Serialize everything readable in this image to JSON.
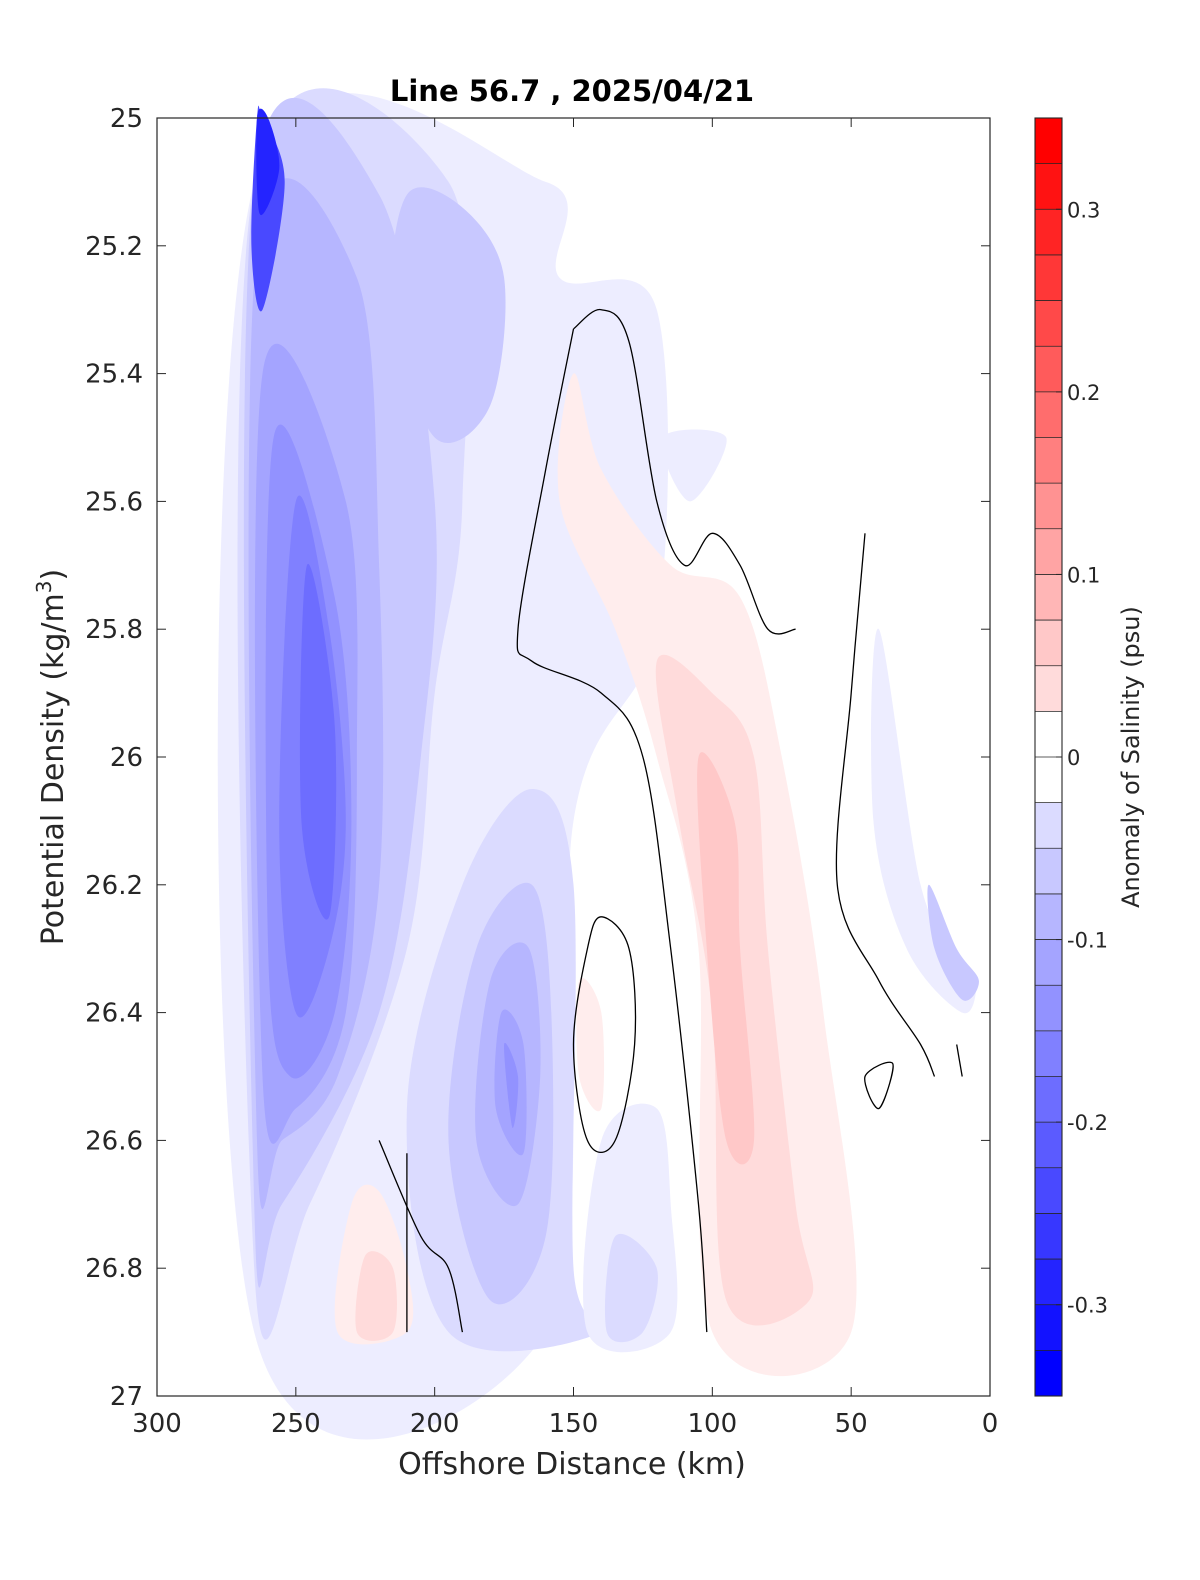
{
  "chart_data": {
    "type": "heatmap",
    "subtype": "filled-contour",
    "title": "Line 56.7 , 2025/04/21",
    "xlabel": "Offshore Distance (km)",
    "ylabel": "Potential Density (kg/m³)",
    "ylabel_parts": {
      "base": "Potential Density (kg/m",
      "sup": "3",
      "end": ")"
    },
    "colorbar_label": "Anomaly of Salinity (psu)",
    "xlim": [
      300,
      0
    ],
    "x_reversed": true,
    "ylim": [
      25,
      27
    ],
    "y_reversed": true,
    "x_ticks": [
      300,
      250,
      200,
      150,
      100,
      50,
      0
    ],
    "x_tick_labels": [
      "300",
      "250",
      "200",
      "150",
      "100",
      "50",
      "0"
    ],
    "y_ticks": [
      25,
      25.2,
      25.4,
      25.6,
      25.8,
      26,
      26.2,
      26.4,
      26.6,
      26.8,
      27
    ],
    "y_tick_labels": [
      "25",
      "25.2",
      "25.4",
      "25.6",
      "25.8",
      "26",
      "26.2",
      "26.4",
      "26.6",
      "26.8",
      "27"
    ],
    "colorbar_range": [
      -0.35,
      0.35
    ],
    "colorbar_step": 0.025,
    "colorbar_ticks": [
      -0.3,
      -0.2,
      -0.1,
      0,
      0.1,
      0.2,
      0.3
    ],
    "colorbar_tick_labels": [
      "-0.3",
      "-0.2",
      "-0.1",
      "0",
      "0.1",
      "0.2",
      "0.3"
    ],
    "colormap": {
      "negative": "#0000ff",
      "zero": "#ffffff",
      "positive": "#ff0000"
    },
    "zero_contour_color": "#000000",
    "grid": false,
    "regions": [
      {
        "sign": "neg",
        "level": 0.025,
        "points": [
          [
            265,
            25.1
          ],
          [
            160,
            25.1
          ],
          [
            155,
            25.25
          ],
          [
            120,
            25.3
          ],
          [
            120,
            25.8
          ],
          [
            150,
            26.1
          ],
          [
            160,
            26.9
          ],
          [
            265,
            26.9
          ]
        ]
      },
      {
        "sign": "neg",
        "level": 0.05,
        "points": [
          [
            265,
            25.1
          ],
          [
            195,
            25.1
          ],
          [
            190,
            25.6
          ],
          [
            200,
            25.9
          ],
          [
            210,
            26.3
          ],
          [
            245,
            26.7
          ],
          [
            265,
            26.8
          ]
        ]
      },
      {
        "sign": "neg",
        "level": 0.075,
        "points": [
          [
            265,
            25.1
          ],
          [
            220,
            25.12
          ],
          [
            200,
            25.6
          ],
          [
            205,
            26.0
          ],
          [
            220,
            26.4
          ],
          [
            255,
            26.7
          ],
          [
            265,
            26.7
          ]
        ]
      },
      {
        "sign": "neg",
        "level": 0.1,
        "points": [
          [
            264,
            25.2
          ],
          [
            228,
            25.25
          ],
          [
            220,
            25.7
          ],
          [
            220,
            26.2
          ],
          [
            235,
            26.5
          ],
          [
            255,
            26.6
          ],
          [
            264,
            26.6
          ]
        ]
      },
      {
        "sign": "neg",
        "level": 0.125,
        "points": [
          [
            262,
            25.4
          ],
          [
            232,
            25.6
          ],
          [
            228,
            26.0
          ],
          [
            232,
            26.4
          ],
          [
            250,
            26.55
          ],
          [
            262,
            26.5
          ]
        ]
      },
      {
        "sign": "neg",
        "level": 0.15,
        "points": [
          [
            258,
            25.5
          ],
          [
            236,
            25.75
          ],
          [
            230,
            26.1
          ],
          [
            236,
            26.4
          ],
          [
            252,
            26.5
          ],
          [
            260,
            26.3
          ]
        ]
      },
      {
        "sign": "neg",
        "level": 0.175,
        "points": [
          [
            250,
            25.6
          ],
          [
            238,
            25.8
          ],
          [
            232,
            26.1
          ],
          [
            238,
            26.3
          ],
          [
            250,
            26.4
          ],
          [
            256,
            26.1
          ]
        ]
      },
      {
        "sign": "neg",
        "level": 0.2,
        "points": [
          [
            246,
            25.7
          ],
          [
            236,
            25.95
          ],
          [
            238,
            26.25
          ],
          [
            248,
            26.1
          ]
        ]
      },
      {
        "sign": "neg",
        "level": 0.25,
        "points": [
          [
            264,
            25.0
          ],
          [
            262,
            25.0
          ],
          [
            254,
            25.1
          ],
          [
            262,
            25.3
          ],
          [
            266,
            25.2
          ]
        ]
      },
      {
        "sign": "neg",
        "level": 0.3,
        "points": [
          [
            264,
            25.0
          ],
          [
            260,
            25.0
          ],
          [
            256,
            25.08
          ],
          [
            263,
            25.15
          ]
        ]
      },
      {
        "sign": "neg",
        "level": 0.075,
        "points": [
          [
            210,
            25.12
          ],
          [
            190,
            25.14
          ],
          [
            175,
            25.25
          ],
          [
            180,
            25.45
          ],
          [
            200,
            25.5
          ],
          [
            215,
            25.3
          ]
        ]
      },
      {
        "sign": "neg",
        "level": 0.05,
        "points": [
          [
            190,
            26.2
          ],
          [
            165,
            26.05
          ],
          [
            150,
            26.2
          ],
          [
            150,
            26.8
          ],
          [
            140,
            26.9
          ],
          [
            195,
            26.9
          ],
          [
            210,
            26.55
          ]
        ]
      },
      {
        "sign": "neg",
        "level": 0.075,
        "points": [
          [
            185,
            26.3
          ],
          [
            165,
            26.2
          ],
          [
            158,
            26.4
          ],
          [
            160,
            26.75
          ],
          [
            180,
            26.85
          ],
          [
            195,
            26.6
          ]
        ]
      },
      {
        "sign": "neg",
        "level": 0.1,
        "points": [
          [
            180,
            26.35
          ],
          [
            166,
            26.3
          ],
          [
            162,
            26.5
          ],
          [
            170,
            26.7
          ],
          [
            185,
            26.6
          ]
        ]
      },
      {
        "sign": "neg",
        "level": 0.125,
        "points": [
          [
            176,
            26.4
          ],
          [
            168,
            26.45
          ],
          [
            168,
            26.62
          ],
          [
            178,
            26.55
          ]
        ]
      },
      {
        "sign": "neg",
        "level": 0.15,
        "points": [
          [
            175,
            26.45
          ],
          [
            170,
            26.5
          ],
          [
            172,
            26.58
          ]
        ]
      },
      {
        "sign": "neg",
        "level": 0.025,
        "points": [
          [
            140,
            26.6
          ],
          [
            120,
            26.55
          ],
          [
            115,
            26.7
          ],
          [
            115,
            26.9
          ],
          [
            145,
            26.9
          ]
        ]
      },
      {
        "sign": "neg",
        "level": 0.05,
        "points": [
          [
            135,
            26.75
          ],
          [
            120,
            26.8
          ],
          [
            125,
            26.9
          ],
          [
            138,
            26.9
          ]
        ]
      },
      {
        "sign": "neg",
        "level": 0.025,
        "points": [
          [
            118,
            25.5
          ],
          [
            95,
            25.5
          ],
          [
            108,
            25.6
          ]
        ]
      },
      {
        "sign": "neg",
        "level": 0.025,
        "points": [
          [
            40,
            25.8
          ],
          [
            25,
            26.2
          ],
          [
            12,
            26.3
          ],
          [
            5,
            26.35
          ],
          [
            10,
            26.4
          ],
          [
            30,
            26.3
          ],
          [
            42,
            26.1
          ]
        ]
      },
      {
        "sign": "neg",
        "level": 0.075,
        "points": [
          [
            22,
            26.2
          ],
          [
            12,
            26.3
          ],
          [
            4,
            26.35
          ],
          [
            10,
            26.38
          ],
          [
            20,
            26.3
          ]
        ]
      },
      {
        "sign": "pos",
        "level": 0.025,
        "points": [
          [
            150,
            25.4
          ],
          [
            140,
            25.55
          ],
          [
            115,
            25.7
          ],
          [
            90,
            25.75
          ],
          [
            75,
            26.0
          ],
          [
            60,
            26.4
          ],
          [
            50,
            26.9
          ],
          [
            100,
            26.9
          ],
          [
            105,
            26.3
          ],
          [
            120,
            26.0
          ],
          [
            135,
            25.8
          ],
          [
            155,
            25.6
          ]
        ]
      },
      {
        "sign": "pos",
        "level": 0.05,
        "points": [
          [
            120,
            25.85
          ],
          [
            100,
            25.9
          ],
          [
            85,
            26.0
          ],
          [
            80,
            26.3
          ],
          [
            70,
            26.7
          ],
          [
            65,
            26.85
          ],
          [
            95,
            26.85
          ],
          [
            100,
            26.4
          ],
          [
            112,
            26.1
          ]
        ]
      },
      {
        "sign": "pos",
        "level": 0.075,
        "points": [
          [
            105,
            26.0
          ],
          [
            92,
            26.1
          ],
          [
            90,
            26.3
          ],
          [
            85,
            26.6
          ],
          [
            95,
            26.6
          ],
          [
            102,
            26.3
          ]
        ]
      },
      {
        "sign": "pos",
        "level": 0.025,
        "points": [
          [
            148,
            26.35
          ],
          [
            140,
            26.4
          ],
          [
            140,
            26.55
          ],
          [
            148,
            26.5
          ]
        ]
      },
      {
        "sign": "pos",
        "level": 0.025,
        "points": [
          [
            230,
            26.7
          ],
          [
            220,
            26.68
          ],
          [
            210,
            26.8
          ],
          [
            210,
            26.9
          ],
          [
            235,
            26.9
          ]
        ]
      },
      {
        "sign": "pos",
        "level": 0.05,
        "points": [
          [
            225,
            26.78
          ],
          [
            215,
            26.8
          ],
          [
            215,
            26.9
          ],
          [
            228,
            26.9
          ]
        ]
      }
    ],
    "zero_contours": [
      [
        [
          150,
          25.33
        ],
        [
          140,
          25.3
        ],
        [
          130,
          25.35
        ],
        [
          120,
          25.6
        ],
        [
          110,
          25.7
        ],
        [
          100,
          25.65
        ],
        [
          90,
          25.7
        ],
        [
          80,
          25.8
        ],
        [
          70,
          25.8
        ]
      ],
      [
        [
          150,
          25.33
        ],
        [
          160,
          25.55
        ],
        [
          170,
          25.8
        ],
        [
          165,
          25.85
        ],
        [
          140,
          25.9
        ],
        [
          125,
          26.0
        ],
        [
          115,
          26.3
        ],
        [
          105,
          26.7
        ],
        [
          102,
          26.9
        ]
      ],
      [
        [
          140,
          26.25
        ],
        [
          130,
          26.3
        ],
        [
          128,
          26.45
        ],
        [
          135,
          26.6
        ],
        [
          145,
          26.6
        ],
        [
          150,
          26.45
        ],
        [
          145,
          26.3
        ],
        [
          140,
          26.25
        ]
      ],
      [
        [
          220,
          26.6
        ],
        [
          205,
          26.75
        ],
        [
          195,
          26.8
        ],
        [
          190,
          26.9
        ]
      ],
      [
        [
          210,
          26.62
        ],
        [
          210,
          26.9
        ]
      ],
      [
        [
          45,
          25.65
        ],
        [
          50,
          25.9
        ],
        [
          55,
          26.2
        ],
        [
          40,
          26.35
        ],
        [
          25,
          26.45
        ],
        [
          20,
          26.5
        ]
      ],
      [
        [
          45,
          26.5
        ],
        [
          35,
          26.48
        ],
        [
          40,
          26.55
        ],
        [
          45,
          26.5
        ]
      ],
      [
        [
          12,
          26.45
        ],
        [
          10,
          26.5
        ]
      ]
    ]
  }
}
